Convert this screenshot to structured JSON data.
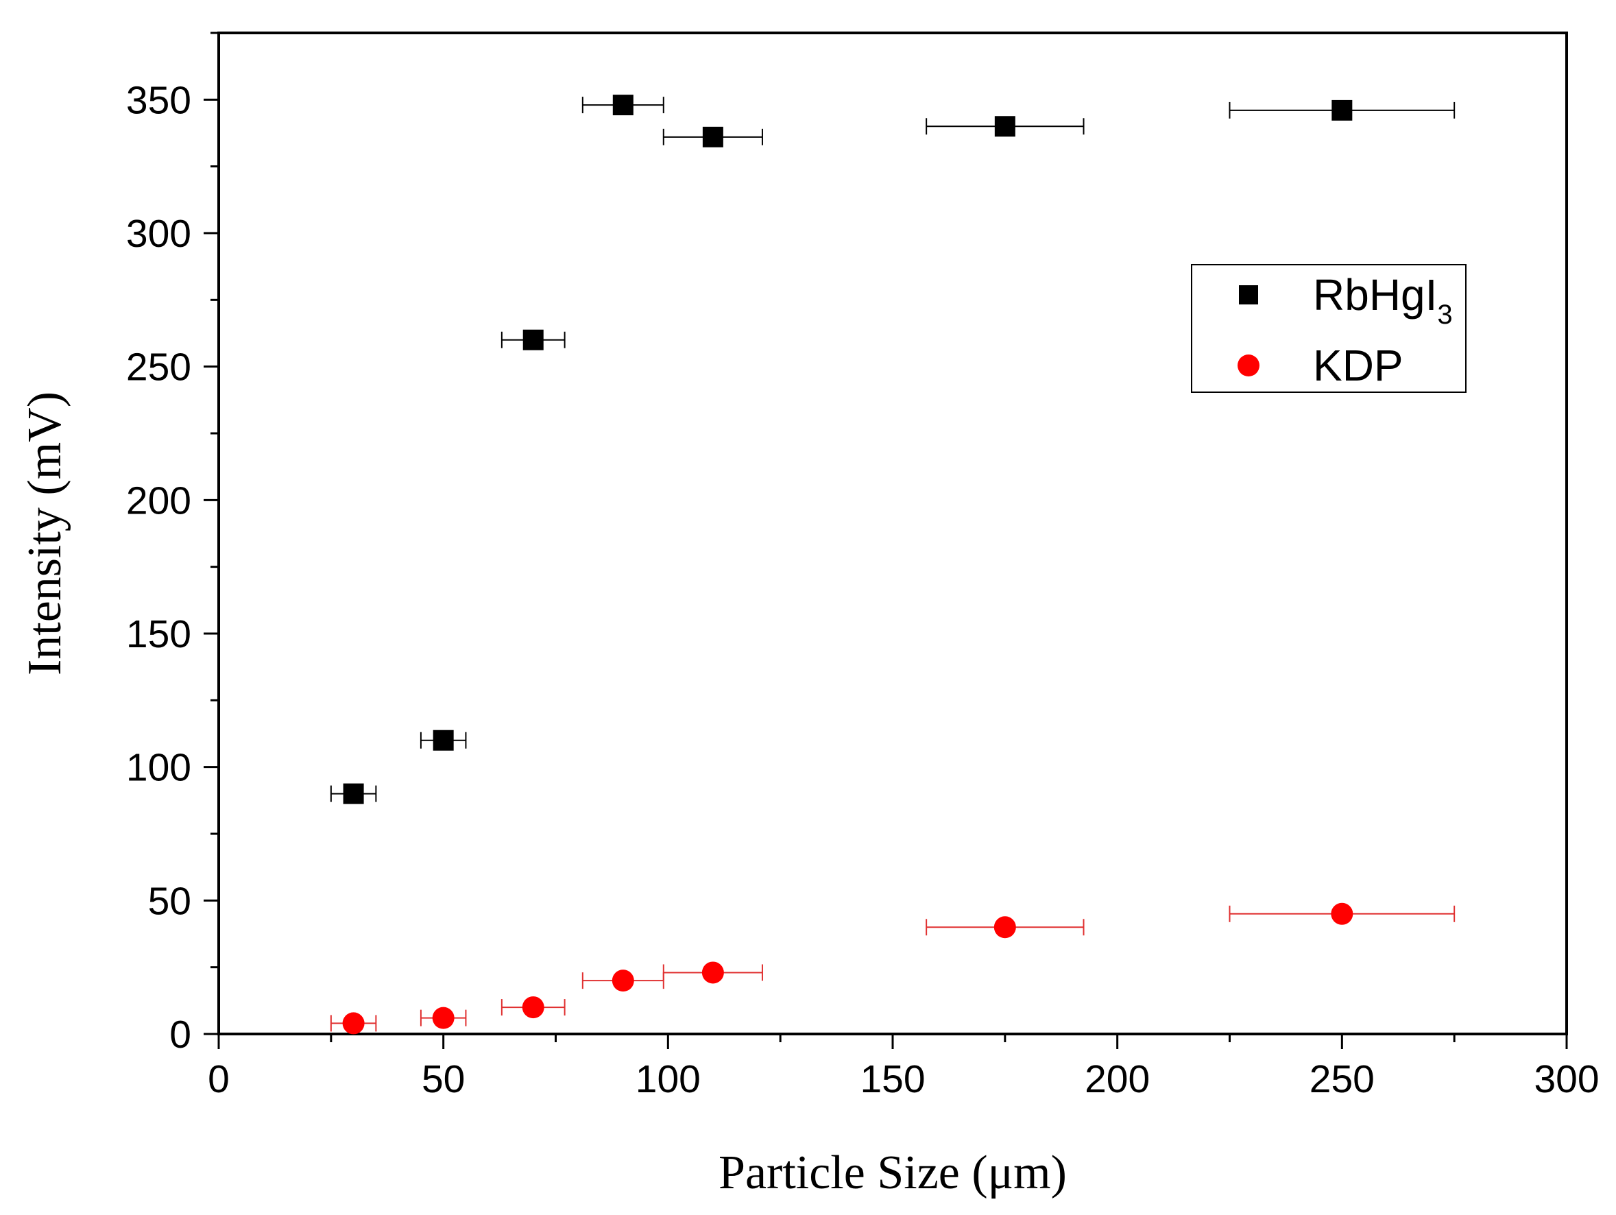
{
  "chart_data": {
    "type": "scatter",
    "xlabel": "Particle Size (μm)",
    "ylabel": "Intensity (mV)",
    "xlim": [
      0,
      300
    ],
    "ylim": [
      0,
      375
    ],
    "x_ticks": [
      0,
      50,
      100,
      150,
      200,
      250,
      300
    ],
    "y_ticks": [
      0,
      50,
      100,
      150,
      200,
      250,
      300,
      350
    ],
    "x_tick_labels": [
      "0",
      "50",
      "100",
      "150",
      "200",
      "250",
      "300"
    ],
    "y_tick_labels": [
      "0",
      "50",
      "100",
      "150",
      "200",
      "250",
      "300",
      "350"
    ],
    "grid": false,
    "legend_position": "upper-right",
    "series": [
      {
        "name": "RbHgI3",
        "legend_main": "RbHgI",
        "legend_sub": "3",
        "marker": "square",
        "color": "#000000",
        "errorbar_color": "#000000",
        "x": [
          30,
          50,
          70,
          90,
          110,
          175,
          250
        ],
        "y": [
          90,
          110,
          260,
          348,
          336,
          340,
          346
        ],
        "xerr": [
          5,
          5,
          7,
          9,
          11,
          17.5,
          25
        ]
      },
      {
        "name": "KDP",
        "legend_main": "KDP",
        "legend_sub": "",
        "marker": "circle",
        "color": "#ff0000",
        "errorbar_color": "#e03030",
        "x": [
          30,
          50,
          70,
          90,
          110,
          175,
          250
        ],
        "y": [
          4,
          6,
          10,
          20,
          23,
          40,
          45
        ],
        "xerr": [
          5,
          5,
          7,
          9,
          11,
          17.5,
          25
        ]
      }
    ]
  }
}
